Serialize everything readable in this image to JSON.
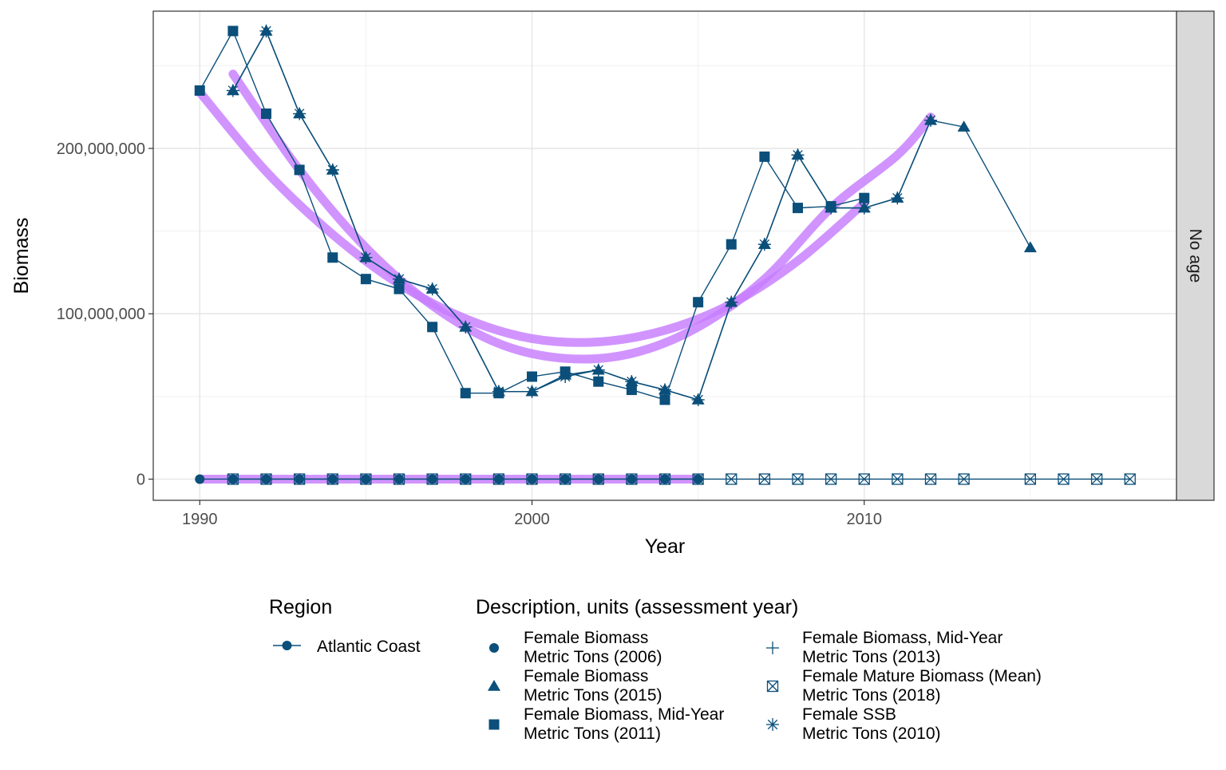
{
  "chart_data": {
    "type": "line",
    "xlabel": "Year",
    "ylabel": "Biomass",
    "xlim": [
      1988.6,
      2019.4
    ],
    "ylim": [
      -12800000,
      283000000
    ],
    "x_ticks": [
      1990,
      2000,
      2010
    ],
    "x_tick_labels": [
      "1990",
      "2000",
      "2010"
    ],
    "x_minor": [
      1995,
      2005,
      2015
    ],
    "y_ticks": [
      0,
      100000000,
      200000000
    ],
    "y_tick_labels": [
      "0",
      "100,000,000",
      "200,000,000"
    ],
    "y_minor": [
      50000000,
      150000000,
      250000000
    ],
    "grid": true,
    "facet_label": "No age",
    "legend_position": "bottom",
    "line_color": "#0b4f7a",
    "smooth_color": "#c77cff",
    "region_legend": {
      "title": "Region",
      "entries": [
        {
          "label": "Atlantic Coast"
        }
      ]
    },
    "description_legend": {
      "title": "Description, units (assessment year)",
      "entries": [
        {
          "line1": "Female Biomass",
          "line2": "Metric Tons (2006)",
          "shape": "circle"
        },
        {
          "line1": "Female Biomass",
          "line2": "Metric Tons (2015)",
          "shape": "triangle"
        },
        {
          "line1": "Female Biomass, Mid-Year",
          "line2": "Metric Tons (2011)",
          "shape": "square"
        },
        {
          "line1": "Female Biomass, Mid-Year",
          "line2": "Metric Tons (2013)",
          "shape": "plus"
        },
        {
          "line1": "Female Mature Biomass (Mean)",
          "line2": "Metric Tons (2018)",
          "shape": "boxcross"
        },
        {
          "line1": "Female SSB",
          "line2": "Metric Tons (2010)",
          "shape": "asterisk"
        }
      ]
    },
    "series": [
      {
        "shape": "circle",
        "x": [
          1990,
          1991,
          1992,
          1993,
          1994,
          1995,
          1996,
          1997,
          1998,
          1999,
          2000,
          2001,
          2002,
          2003,
          2004,
          2005
        ],
        "y": [
          0,
          0,
          0,
          0,
          0,
          0,
          0,
          0,
          0,
          0,
          0,
          0,
          0,
          0,
          0,
          0
        ]
      },
      {
        "shape": "triangle",
        "x": [
          1991,
          1992,
          1993,
          1994,
          1995,
          1996,
          1997,
          1998,
          1999,
          2000,
          2001,
          2002,
          2003,
          2004,
          2005,
          2006,
          2007,
          2008,
          2009,
          2010,
          2011,
          2012,
          2013,
          2015
        ],
        "y": [
          235000000,
          271000000,
          221000000,
          187000000,
          134000000,
          121000000,
          115000000,
          92000000,
          53000000,
          53000000,
          63000000,
          66000000,
          59000000,
          54000000,
          48000000,
          107000000,
          142000000,
          196000000,
          164000000,
          164000000,
          170000000,
          217000000,
          213000000,
          140000000
        ]
      },
      {
        "shape": "square",
        "x": [
          1990,
          1991,
          1992,
          1993,
          1994,
          1995,
          1996,
          1997,
          1998,
          1999,
          2000,
          2001,
          2002,
          2003,
          2004,
          2005,
          2006,
          2007,
          2008,
          2009,
          2010
        ],
        "y": [
          235000000,
          271000000,
          221000000,
          187000000,
          134000000,
          121000000,
          115000000,
          92000000,
          52000000,
          52000000,
          62000000,
          65000000,
          59000000,
          54000000,
          48000000,
          107000000,
          142000000,
          195000000,
          164000000,
          165000000,
          170000000
        ]
      },
      {
        "shape": "plus",
        "x": [
          1991,
          1992,
          1993,
          1994,
          1995,
          1996,
          1997,
          1998,
          1999,
          2000,
          2001,
          2002,
          2003,
          2004,
          2005,
          2006,
          2007,
          2008,
          2009,
          2010,
          2011,
          2012
        ],
        "y": [
          235000000,
          271000000,
          221000000,
          187000000,
          134000000,
          121000000,
          115000000,
          92000000,
          53000000,
          53000000,
          62000000,
          66000000,
          59000000,
          54000000,
          48000000,
          107000000,
          142000000,
          196000000,
          164000000,
          164000000,
          170000000,
          217000000
        ]
      },
      {
        "shape": "boxcross",
        "x": [
          1991,
          1992,
          1993,
          1994,
          1995,
          1996,
          1997,
          1998,
          1999,
          2000,
          2001,
          2002,
          2003,
          2004,
          2005,
          2006,
          2007,
          2008,
          2009,
          2010,
          2011,
          2012,
          2013,
          2015,
          2016,
          2017,
          2018
        ],
        "y": [
          0,
          0,
          0,
          0,
          0,
          0,
          0,
          0,
          0,
          0,
          0,
          0,
          0,
          0,
          0,
          0,
          0,
          0,
          0,
          0,
          0,
          0,
          0,
          0,
          0,
          0,
          0
        ]
      },
      {
        "shape": "asterisk",
        "x": [
          1991,
          1992,
          1993,
          1994,
          1995,
          1996,
          1997,
          1998,
          1999,
          2000,
          2001,
          2002,
          2003,
          2004,
          2005,
          2006,
          2007,
          2008,
          2009,
          2010,
          2011,
          2012
        ],
        "y": [
          235000000,
          271000000,
          221000000,
          187000000,
          134000000,
          121000000,
          115000000,
          92000000,
          53000000,
          53000000,
          62000000,
          66000000,
          59000000,
          54000000,
          48000000,
          107000000,
          142000000,
          196000000,
          164000000,
          164000000,
          170000000,
          217000000
        ]
      }
    ],
    "smooth_lines": [
      {
        "x": [
          1990,
          1992,
          1994,
          1996,
          1998,
          2000,
          2002,
          2004,
          2006,
          2008,
          2010
        ],
        "y": [
          234000000,
          186000000,
          148000000,
          118000000,
          97000000,
          85000000,
          83000000,
          90000000,
          106000000,
          132000000,
          167000000
        ]
      },
      {
        "x": [
          1991,
          1993,
          1995,
          1997,
          1999,
          2001,
          2003,
          2005,
          2007,
          2009,
          2011,
          2012
        ],
        "y": [
          245000000,
          187000000,
          140000000,
          105000000,
          82000000,
          73000000,
          76000000,
          92000000,
          121000000,
          164000000,
          196000000,
          219000000
        ]
      },
      {
        "x": [
          1990,
          2005
        ],
        "y": [
          0,
          0
        ]
      }
    ]
  }
}
